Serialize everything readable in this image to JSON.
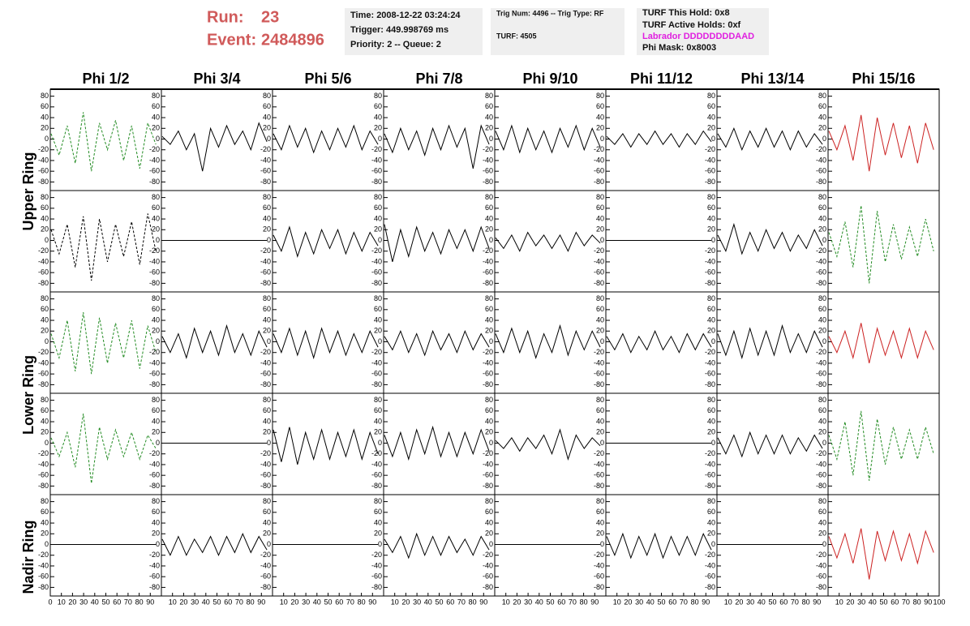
{
  "header": {
    "run_label": "Run:",
    "run": "23",
    "event_label": "Event:",
    "event": "2484896",
    "time": "Time: 2008-12-22 03:24:24",
    "trigger": "Trigger: 449.998769 ms",
    "priority": "Priority: 2 -- Queue: 2",
    "trig": "Trig Num: 4496 -- Trig Type: RF",
    "turf": "TURF: 4505",
    "hold": "TURF This Hold: 0x8",
    "active": "TURF Active Holds: 0xf",
    "labrador": "Labrador DDDDDDDDAAD",
    "phi_mask": "Phi Mask: 0x8003"
  },
  "columns": [
    "Phi 1/2",
    "Phi 3/4",
    "Phi 5/6",
    "Phi 7/8",
    "Phi 9/10",
    "Phi 11/12",
    "Phi 13/14",
    "Phi 15/16"
  ],
  "rings": [
    "Upper Ring",
    "Lower Ring",
    "Nadir Ring"
  ],
  "axes": {
    "xlim": [
      0,
      100
    ],
    "xticks": [
      0,
      10,
      20,
      30,
      40,
      50,
      60,
      70,
      80,
      90,
      100
    ],
    "ylim": [
      -90,
      90
    ],
    "yticks": [
      -80,
      -60,
      -40,
      -20,
      0,
      20,
      40,
      60,
      80
    ]
  },
  "panels": [
    {
      "color": "#228b22",
      "dashed": true,
      "values": [
        10,
        -30,
        25,
        -45,
        50,
        -60,
        30,
        -20,
        35,
        -40,
        25,
        -55,
        30,
        -10
      ]
    },
    {
      "color": "#000000",
      "dashed": false,
      "values": [
        5,
        -10,
        15,
        -20,
        10,
        -60,
        20,
        -15,
        25,
        -10,
        15,
        -20,
        30,
        -5
      ]
    },
    {
      "color": "#000000",
      "dashed": false,
      "values": [
        10,
        -20,
        25,
        -15,
        20,
        -25,
        15,
        -20,
        20,
        -15,
        25,
        -20,
        15,
        -10
      ]
    },
    {
      "color": "#000000",
      "dashed": false,
      "values": [
        10,
        -25,
        20,
        -20,
        15,
        -30,
        20,
        -20,
        25,
        -15,
        20,
        -55,
        25,
        -10
      ]
    },
    {
      "color": "#000000",
      "dashed": false,
      "values": [
        15,
        -20,
        25,
        -25,
        20,
        -20,
        15,
        -25,
        20,
        -15,
        25,
        -20,
        20,
        -15
      ]
    },
    {
      "color": "#000000",
      "dashed": false,
      "values": [
        5,
        -10,
        10,
        -15,
        10,
        -10,
        15,
        -10,
        10,
        -15,
        10,
        -10,
        15,
        -5
      ]
    },
    {
      "color": "#000000",
      "dashed": false,
      "values": [
        10,
        -15,
        20,
        -20,
        15,
        -15,
        20,
        -15,
        15,
        -20,
        15,
        -15,
        10,
        -10
      ]
    },
    {
      "color": "#cc2222",
      "dashed": false,
      "values": [
        15,
        -20,
        25,
        -40,
        45,
        -60,
        40,
        -30,
        30,
        -35,
        25,
        -45,
        30,
        -20
      ]
    },
    {
      "color": "#000000",
      "dashed": true,
      "values": [
        20,
        -25,
        30,
        -50,
        45,
        -75,
        40,
        -40,
        30,
        -30,
        35,
        -45,
        50,
        -20
      ]
    },
    {
      "color": "#000000",
      "dashed": false,
      "values": [
        0,
        0
      ]
    },
    {
      "color": "#000000",
      "dashed": false,
      "values": [
        10,
        -20,
        25,
        -30,
        15,
        -25,
        20,
        -15,
        20,
        -25,
        15,
        -20,
        15,
        -10
      ]
    },
    {
      "color": "#000000",
      "dashed": false,
      "values": [
        30,
        -40,
        20,
        -30,
        25,
        -20,
        15,
        -25,
        20,
        -15,
        20,
        -20,
        25,
        -15
      ]
    },
    {
      "color": "#000000",
      "dashed": false,
      "values": [
        5,
        -15,
        10,
        -20,
        15,
        -10,
        10,
        -15,
        10,
        -20,
        15,
        -10,
        10,
        -5
      ]
    },
    {
      "color": "#000000",
      "dashed": false,
      "values": [
        0,
        0
      ]
    },
    {
      "color": "#000000",
      "dashed": false,
      "values": [
        10,
        -20,
        30,
        -25,
        15,
        -20,
        20,
        -15,
        15,
        -20,
        10,
        -15,
        20,
        -10
      ]
    },
    {
      "color": "#228b22",
      "dashed": true,
      "values": [
        15,
        -30,
        35,
        -50,
        65,
        -80,
        55,
        -40,
        30,
        -35,
        25,
        -30,
        40,
        -20
      ]
    },
    {
      "color": "#228b22",
      "dashed": true,
      "values": [
        15,
        -30,
        40,
        -55,
        55,
        -60,
        45,
        -40,
        35,
        -30,
        40,
        -50,
        30,
        -20
      ]
    },
    {
      "color": "#000000",
      "dashed": false,
      "values": [
        10,
        -20,
        15,
        -30,
        25,
        -20,
        20,
        -25,
        30,
        -20,
        15,
        -25,
        20,
        -10
      ]
    },
    {
      "color": "#000000",
      "dashed": false,
      "values": [
        15,
        -20,
        25,
        -25,
        20,
        -30,
        25,
        -20,
        20,
        -25,
        15,
        -20,
        20,
        -10
      ]
    },
    {
      "color": "#000000",
      "dashed": false,
      "values": [
        10,
        -15,
        20,
        -20,
        15,
        -25,
        20,
        -15,
        15,
        -20,
        20,
        -15,
        15,
        -10
      ]
    },
    {
      "color": "#000000",
      "dashed": false,
      "values": [
        15,
        -20,
        25,
        -20,
        20,
        -30,
        15,
        -20,
        30,
        -25,
        20,
        -15,
        20,
        -10
      ]
    },
    {
      "color": "#000000",
      "dashed": false,
      "values": [
        10,
        -15,
        15,
        -20,
        10,
        -15,
        20,
        -15,
        10,
        -20,
        15,
        -15,
        15,
        -10
      ]
    },
    {
      "color": "#000000",
      "dashed": false,
      "values": [
        15,
        -25,
        20,
        -30,
        25,
        -25,
        20,
        -25,
        30,
        -20,
        15,
        -20,
        20,
        -10
      ]
    },
    {
      "color": "#cc2222",
      "dashed": false,
      "values": [
        10,
        -20,
        20,
        -30,
        35,
        -40,
        25,
        -25,
        20,
        -30,
        25,
        -30,
        20,
        -15
      ]
    },
    {
      "color": "#228b22",
      "dashed": true,
      "values": [
        10,
        -25,
        20,
        -45,
        55,
        -75,
        30,
        -30,
        25,
        -25,
        20,
        -30,
        15,
        -10
      ]
    },
    {
      "color": "#000000",
      "dashed": false,
      "values": [
        0,
        0
      ]
    },
    {
      "color": "#000000",
      "dashed": false,
      "values": [
        25,
        -35,
        30,
        -40,
        20,
        -30,
        25,
        -30,
        20,
        -25,
        25,
        -30,
        20,
        -20
      ]
    },
    {
      "color": "#000000",
      "dashed": false,
      "values": [
        15,
        -25,
        20,
        -30,
        25,
        -20,
        30,
        -25,
        20,
        -25,
        20,
        -20,
        25,
        -15
      ]
    },
    {
      "color": "#000000",
      "dashed": false,
      "values": [
        5,
        -10,
        10,
        -15,
        10,
        -10,
        15,
        -20,
        25,
        -30,
        15,
        -10,
        10,
        -5
      ]
    },
    {
      "color": "#000000",
      "dashed": false,
      "values": [
        0,
        0
      ]
    },
    {
      "color": "#000000",
      "dashed": false,
      "values": [
        10,
        -20,
        15,
        -25,
        20,
        -20,
        15,
        -20,
        15,
        -20,
        10,
        -15,
        15,
        -10
      ]
    },
    {
      "color": "#228b22",
      "dashed": true,
      "values": [
        15,
        -30,
        40,
        -60,
        60,
        -70,
        45,
        -40,
        30,
        -30,
        25,
        -30,
        30,
        -20
      ]
    },
    {
      "color": "#000000",
      "dashed": false,
      "values": [
        0,
        0
      ]
    },
    {
      "color": "#000000",
      "dashed": false,
      "values": [
        10,
        -20,
        15,
        -20,
        10,
        -15,
        15,
        -20,
        15,
        -15,
        20,
        -15,
        15,
        -10
      ]
    },
    {
      "color": "#000000",
      "dashed": false,
      "values": [
        0,
        0
      ]
    },
    {
      "color": "#000000",
      "dashed": false,
      "values": [
        10,
        -15,
        15,
        -25,
        20,
        -20,
        15,
        -20,
        15,
        -15,
        10,
        -20,
        15,
        -10
      ]
    },
    {
      "color": "#000000",
      "dashed": false,
      "values": [
        0,
        0
      ]
    },
    {
      "color": "#000000",
      "dashed": false,
      "values": [
        15,
        -20,
        20,
        -25,
        15,
        -20,
        20,
        -25,
        15,
        -20,
        15,
        -20,
        20,
        -10
      ]
    },
    {
      "color": "#000000",
      "dashed": false,
      "values": [
        0,
        0
      ]
    },
    {
      "color": "#cc2222",
      "dashed": false,
      "values": [
        15,
        -25,
        20,
        -35,
        30,
        -65,
        25,
        -30,
        25,
        -30,
        20,
        -35,
        25,
        -15
      ]
    }
  ]
}
